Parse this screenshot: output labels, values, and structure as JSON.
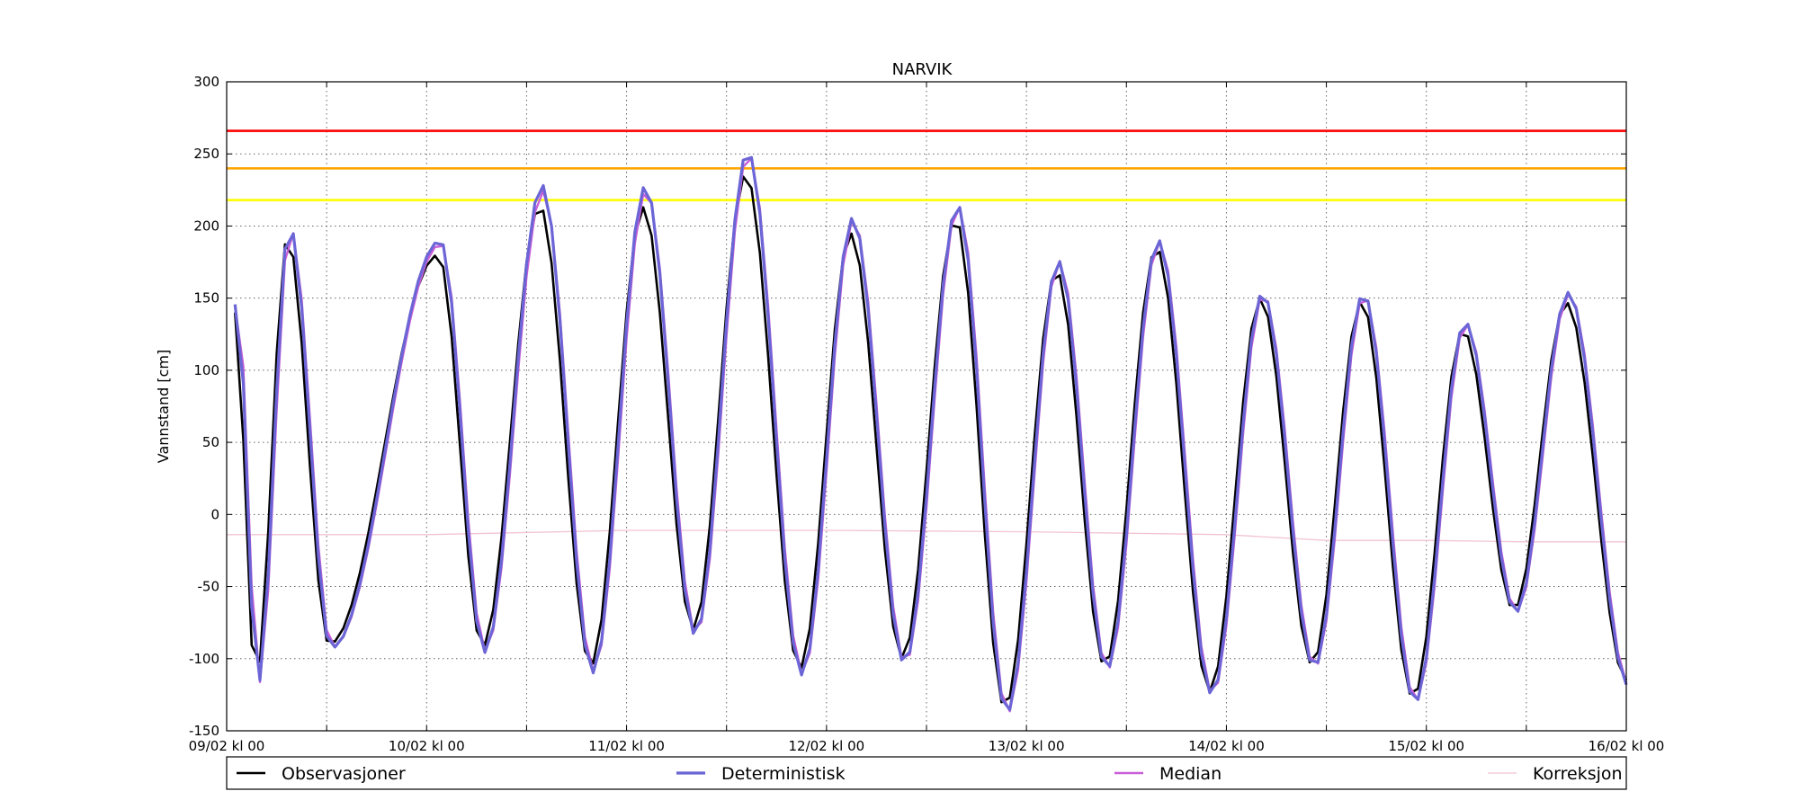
{
  "chart_data": {
    "type": "line",
    "title": "NARVIK",
    "xlabel": "",
    "ylabel": "Vannstand [cm]",
    "ylim": [
      -150,
      300
    ],
    "xlim_hours": [
      0,
      168
    ],
    "yticks": [
      -150,
      -100,
      -50,
      0,
      50,
      100,
      150,
      200,
      250,
      300
    ],
    "xticks": [
      {
        "hour": 0,
        "label": "09/02 kl 00"
      },
      {
        "hour": 24,
        "label": "10/02 kl 00"
      },
      {
        "hour": 48,
        "label": "11/02 kl 00"
      },
      {
        "hour": 72,
        "label": "12/02 kl 00"
      },
      {
        "hour": 96,
        "label": "13/02 kl 00"
      },
      {
        "hour": 120,
        "label": "14/02 kl 00"
      },
      {
        "hour": 144,
        "label": "15/02 kl 00"
      },
      {
        "hour": 168,
        "label": "16/02 kl 00"
      }
    ],
    "grid": true,
    "legend_position": "bottom",
    "thresholds": [
      {
        "value": 266,
        "color": "#ff0000"
      },
      {
        "value": 240,
        "color": "#ffa500"
      },
      {
        "value": 218,
        "color": "#ffff00"
      }
    ],
    "tide_extremes": [
      [
        1,
        140
      ],
      [
        3.5,
        -115
      ],
      [
        7.3,
        192
      ],
      [
        12.3,
        -90
      ],
      [
        25.4,
        180
      ],
      [
        30.7,
        -92
      ],
      [
        37.6,
        214
      ],
      [
        43.7,
        -105
      ],
      [
        50.0,
        213
      ],
      [
        56.0,
        -80
      ],
      [
        62.3,
        236
      ],
      [
        68.8,
        -107
      ],
      [
        74.9,
        195
      ],
      [
        81.1,
        -100
      ],
      [
        87.5,
        205
      ],
      [
        93.4,
        -134
      ],
      [
        99.6,
        169
      ],
      [
        105.4,
        -105
      ],
      [
        111.6,
        185
      ],
      [
        118.0,
        -123
      ],
      [
        124.1,
        150
      ],
      [
        130.3,
        -104
      ],
      [
        136.2,
        148
      ],
      [
        142.4,
        -127
      ],
      [
        148.4,
        128
      ],
      [
        154.5,
        -66
      ],
      [
        160.8,
        147
      ],
      [
        168.0,
        -115
      ]
    ],
    "series": [
      {
        "name": "Observasjoner",
        "color": "#000000",
        "width": 2.6,
        "offsets": [
          [
            0,
            0
          ]
        ],
        "x_shift": 0,
        "x_start": 1
      },
      {
        "name": "Deterministisk",
        "color": "#6b65d6",
        "width": 3.2,
        "offsets": [
          [
            0,
            8
          ],
          [
            20,
            10
          ],
          [
            40,
            14
          ],
          [
            60,
            14
          ],
          [
            80,
            10
          ],
          [
            100,
            8
          ],
          [
            120,
            4
          ],
          [
            140,
            8
          ],
          [
            168,
            10
          ]
        ],
        "x_shift": -0.25,
        "x_start": 1
      },
      {
        "name": "Median",
        "color": "#c95fd8",
        "width": 2.4,
        "offsets": [
          [
            0,
            6
          ],
          [
            20,
            8
          ],
          [
            40,
            10
          ],
          [
            60,
            12
          ],
          [
            80,
            9
          ],
          [
            100,
            8
          ],
          [
            120,
            3
          ],
          [
            140,
            6
          ],
          [
            168,
            9
          ]
        ],
        "x_shift": -0.35,
        "x_start": 1
      },
      {
        "name": "Korreksjon",
        "color": "#f2c4d4",
        "width": 1.3,
        "steps": [
          [
            0,
            -14
          ],
          [
            24,
            -14
          ],
          [
            48,
            -11
          ],
          [
            72,
            -11
          ],
          [
            96,
            -12
          ],
          [
            108,
            -13
          ],
          [
            120,
            -14
          ],
          [
            132,
            -18
          ],
          [
            144,
            -18
          ],
          [
            156,
            -19
          ],
          [
            168,
            -19
          ]
        ]
      }
    ]
  }
}
